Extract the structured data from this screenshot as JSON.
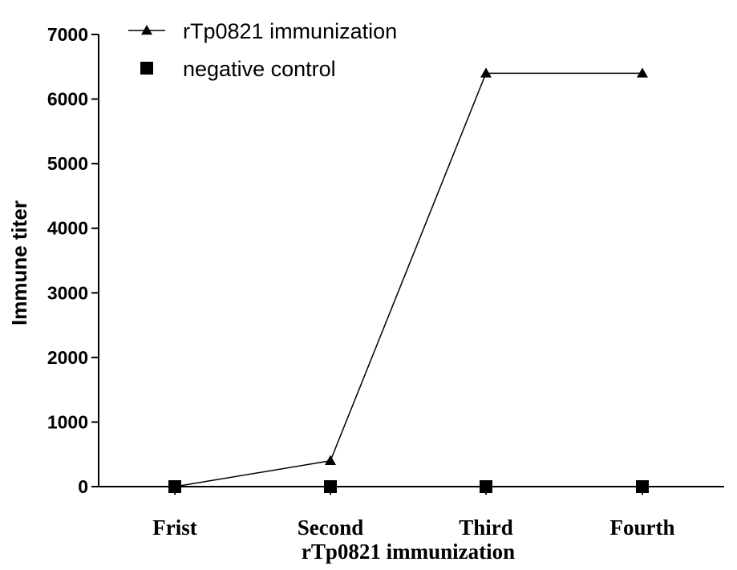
{
  "chart_data": {
    "type": "line",
    "title": "",
    "xlabel": "rTp0821 immunization",
    "ylabel": "Immune titer",
    "categories": [
      "Frist",
      "Second",
      "Third",
      "Fourth"
    ],
    "ylim": [
      0,
      7000
    ],
    "yticks": [
      0,
      1000,
      2000,
      3000,
      4000,
      5000,
      6000,
      7000
    ],
    "grid": false,
    "legend_position": "top-left",
    "series": [
      {
        "name": "rTp0821 immunization",
        "marker": "triangle",
        "line": true,
        "color": "#000000",
        "values": [
          0,
          400,
          6400,
          6400
        ]
      },
      {
        "name": "negative control",
        "marker": "square",
        "line": false,
        "color": "#000000",
        "values": [
          0,
          0,
          0,
          0
        ]
      }
    ]
  }
}
